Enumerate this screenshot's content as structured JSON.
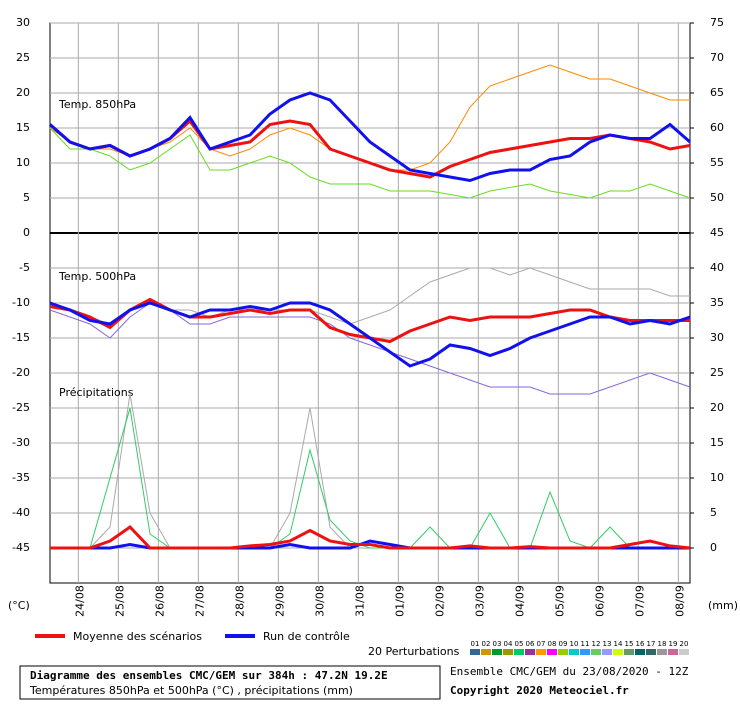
{
  "chart_data": {
    "type": "line",
    "x": [
      0,
      12,
      24,
      36,
      48,
      60,
      72,
      84,
      96,
      108,
      120,
      132,
      144,
      156,
      168,
      180,
      192,
      204,
      216,
      228,
      240,
      252,
      264,
      276,
      288,
      300,
      312,
      324,
      336,
      348,
      360,
      372,
      384
    ],
    "xlim": [
      0,
      384
    ],
    "xticks": [
      {
        "value": 17,
        "label": "24/08"
      },
      {
        "value": 41,
        "label": "25/08"
      },
      {
        "value": 65,
        "label": "26/08"
      },
      {
        "value": 89,
        "label": "27/08"
      },
      {
        "value": 113,
        "label": "28/08"
      },
      {
        "value": 137,
        "label": "29/08"
      },
      {
        "value": 161,
        "label": "30/08"
      },
      {
        "value": 185,
        "label": "31/08"
      },
      {
        "value": 209,
        "label": "01/09"
      },
      {
        "value": 233,
        "label": "02/09"
      },
      {
        "value": 257,
        "label": "03/09"
      },
      {
        "value": 281,
        "label": "04/09"
      },
      {
        "value": 305,
        "label": "05/09"
      },
      {
        "value": 329,
        "label": "06/09"
      },
      {
        "value": 353,
        "label": "07/09"
      },
      {
        "value": 377,
        "label": "08/09"
      }
    ],
    "ylim": [
      -50,
      30
    ],
    "yticks": [
      30,
      25,
      20,
      15,
      10,
      5,
      0,
      -5,
      -10,
      -15,
      -20,
      -25,
      -30,
      -35,
      -40,
      -45
    ],
    "y2lim": [
      -5,
      75
    ],
    "y2ticks": [
      75,
      70,
      65,
      60,
      55,
      50,
      45,
      40,
      35,
      30,
      25,
      20,
      15,
      10,
      5,
      0
    ],
    "ylabel": "(°C)",
    "y2label": "(mm)",
    "grid": true,
    "annotations": [
      "Temp. 850hPa",
      "Temp. 500hPa",
      "Précipitations"
    ],
    "series": [
      {
        "color": "#ff8800",
        "values": [
          15,
          13,
          12,
          12,
          11,
          12,
          13,
          15,
          12,
          11,
          12,
          14,
          15,
          14,
          12,
          11,
          10,
          9,
          9,
          10,
          13,
          18,
          21,
          22,
          23,
          24,
          23,
          22,
          22,
          21,
          20,
          19,
          19
        ]
      },
      {
        "color": "#66dd22",
        "values": [
          15,
          12,
          12,
          11,
          9,
          10,
          12,
          14,
          9,
          9,
          10,
          11,
          10,
          8,
          7,
          7,
          7,
          6,
          6,
          6,
          5.5,
          5,
          6,
          6.5,
          7,
          6,
          5.5,
          5,
          6,
          6,
          7,
          6,
          5
        ]
      },
      {
        "color": "#aaaaaa",
        "values": [
          -10,
          -11,
          -12,
          -13,
          -11,
          -10,
          -11,
          -11,
          -12,
          -11,
          -11,
          -11,
          -11,
          -11,
          -12,
          -13,
          -12,
          -11,
          -9,
          -7,
          -6,
          -5,
          -5,
          -6,
          -5,
          -6,
          -7,
          -8,
          -8,
          -8,
          -8,
          -9,
          -9
        ]
      },
      {
        "color": "#8866dd",
        "values": [
          -11,
          -12,
          -13,
          -15,
          -12,
          -10,
          -11,
          -13,
          -13,
          -12,
          -12,
          -12,
          -12,
          -12,
          -13,
          -15,
          -16,
          -17,
          -18,
          -19,
          -20,
          -21,
          -22,
          -22,
          -22,
          -23,
          -23,
          -23,
          -22,
          -21,
          -20,
          -21,
          -22
        ]
      },
      {
        "color": "#aaaaaa",
        "axis": "y2",
        "values": [
          0,
          0,
          0,
          3,
          22,
          5,
          0,
          0,
          0,
          0,
          0,
          0,
          5,
          20,
          3,
          0,
          0,
          0,
          0,
          0,
          0,
          0,
          0,
          0,
          0,
          0,
          0,
          0,
          0,
          0,
          0,
          0,
          0
        ]
      },
      {
        "color": "#33cc66",
        "axis": "y2",
        "values": [
          0,
          0,
          0,
          10,
          20,
          2,
          0,
          0,
          0,
          0,
          0,
          0,
          2,
          14,
          4,
          1,
          0,
          0,
          0,
          3,
          0,
          0,
          5,
          0,
          0,
          8,
          1,
          0,
          3,
          0,
          0,
          0,
          0
        ]
      },
      {
        "name": "Moyenne des scénarios",
        "color": "#ee1111",
        "linewidth": 3,
        "values": [
          15.5,
          13,
          12,
          12.5,
          11,
          12,
          13.5,
          16,
          12,
          12.5,
          13,
          15.5,
          16,
          15.5,
          12,
          11,
          10,
          9,
          8.5,
          8,
          9.5,
          10.5,
          11.5,
          12,
          12.5,
          13,
          13.5,
          13.5,
          14,
          13.5,
          13,
          12,
          12.5
        ]
      },
      {
        "name": "Run de contrôle",
        "color": "#1111ee",
        "linewidth": 3,
        "values": [
          15.5,
          13,
          12,
          12.5,
          11,
          12,
          13.5,
          16.5,
          12,
          13,
          14,
          17,
          19,
          20,
          19,
          16,
          13,
          11,
          9,
          8.5,
          8,
          7.5,
          8.5,
          9,
          9,
          10.5,
          11,
          13,
          14,
          13.5,
          13.5,
          15.5,
          13
        ]
      },
      {
        "color": "#ee1111",
        "linewidth": 3,
        "values": [
          -10.5,
          -11,
          -12,
          -13.5,
          -11,
          -9.5,
          -11,
          -12,
          -12,
          -11.5,
          -11,
          -11.5,
          -11,
          -11,
          -13.5,
          -14.5,
          -15,
          -15.5,
          -14,
          -13,
          -12,
          -12.5,
          -12,
          -12,
          -12,
          -11.5,
          -11,
          -11,
          -12,
          -12.5,
          -12.5,
          -12.5,
          -12.5
        ]
      },
      {
        "color": "#1111ee",
        "linewidth": 3,
        "values": [
          -10,
          -11,
          -12.5,
          -13,
          -11,
          -10,
          -11,
          -12,
          -11,
          -11,
          -10.5,
          -11,
          -10,
          -10,
          -11,
          -13,
          -15,
          -17,
          -19,
          -18,
          -16,
          -16.5,
          -17.5,
          -16.5,
          -15,
          -14,
          -13,
          -12,
          -12,
          -13,
          -12.5,
          -13,
          -12
        ]
      },
      {
        "color": "#1111ee",
        "linewidth": 3,
        "axis": "y2",
        "values": [
          0,
          0,
          0,
          0,
          0.5,
          0,
          0,
          0,
          0,
          0,
          0,
          0,
          0.5,
          0,
          0,
          0,
          1,
          0.5,
          0,
          0,
          0,
          0,
          0,
          0,
          0,
          0,
          0,
          0,
          0,
          0,
          0,
          0,
          0
        ]
      },
      {
        "color": "#ee1111",
        "linewidth": 3,
        "axis": "y2",
        "values": [
          0,
          0,
          0,
          1,
          3,
          0,
          0,
          0,
          0,
          0,
          0.3,
          0.5,
          1,
          2.5,
          1,
          0.5,
          0.5,
          0,
          0,
          0,
          0,
          0.3,
          0,
          0,
          0.2,
          0,
          0,
          0,
          0,
          0.5,
          1,
          0.3,
          0
        ]
      }
    ],
    "perturbations": {
      "label": "20 Perturbations",
      "members": [
        {
          "name": "01",
          "color": "#336699"
        },
        {
          "name": "02",
          "color": "#cc9900"
        },
        {
          "name": "03",
          "color": "#009933"
        },
        {
          "name": "04",
          "color": "#999900"
        },
        {
          "name": "05",
          "color": "#00cc66"
        },
        {
          "name": "06",
          "color": "#993399"
        },
        {
          "name": "07",
          "color": "#ff9900"
        },
        {
          "name": "08",
          "color": "#ff00ff"
        },
        {
          "name": "09",
          "color": "#99cc00"
        },
        {
          "name": "10",
          "color": "#00cccc"
        },
        {
          "name": "11",
          "color": "#3399ff"
        },
        {
          "name": "12",
          "color": "#66cc66"
        },
        {
          "name": "13",
          "color": "#9999ff"
        },
        {
          "name": "14",
          "color": "#ccff00"
        },
        {
          "name": "15",
          "color": "#669966"
        },
        {
          "name": "16",
          "color": "#006666"
        },
        {
          "name": "17",
          "color": "#336666"
        },
        {
          "name": "18",
          "color": "#999999"
        },
        {
          "name": "19",
          "color": "#cc6699"
        },
        {
          "name": "20",
          "color": "#cccccc"
        }
      ]
    },
    "footer": {
      "title": "Diagramme des ensembles CMC/GEM sur 384h : 47.2N 19.2E",
      "subtitle": "Températures 850hPa et 500hPa (°C) , précipitations (mm)",
      "run": "Ensemble CMC/GEM du 23/08/2020 - 12Z",
      "copyright": "Copyright 2020 Meteociel.fr"
    }
  }
}
